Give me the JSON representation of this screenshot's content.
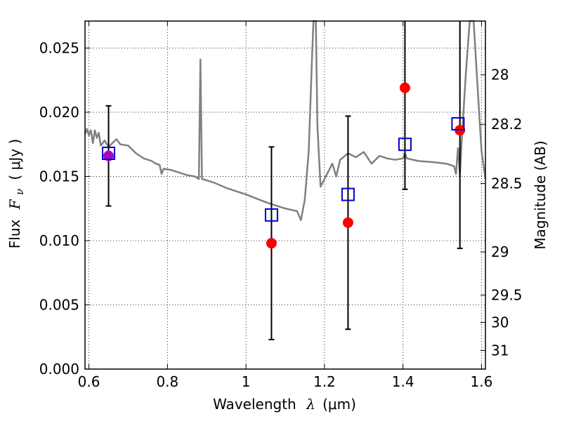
{
  "chart_data": {
    "type": "scatter",
    "xlabel_text": "Wavelength",
    "xlabel_symbol": "λ",
    "xlabel_unit": "(μm)",
    "ylabel_text": "Flux",
    "ylabel_symbol": "F",
    "ylabel_subscript": "ν",
    "ylabel_unit": "( μJy )",
    "y2label": "Magnitude (AB)",
    "xlim": [
      0.59,
      1.61
    ],
    "ylim": [
      0.0,
      0.0271
    ],
    "grid": true,
    "x_ticks": [
      "0.6",
      "0.8",
      "1",
      "1.2",
      "1.4",
      "1.6"
    ],
    "x_tick_values": [
      0.6,
      0.8,
      1.0,
      1.2,
      1.4,
      1.6
    ],
    "y_ticks": [
      "0.000",
      "0.005",
      "0.010",
      "0.015",
      "0.020",
      "0.025"
    ],
    "y_tick_values": [
      0.0,
      0.005,
      0.01,
      0.015,
      0.02,
      0.025
    ],
    "y2_ticks": [
      "28",
      "28.2",
      "28.5",
      "29",
      "29.5",
      "30",
      "31"
    ],
    "y2_tick_magnitudes": [
      28.0,
      28.2,
      28.5,
      29.0,
      29.5,
      30.0,
      31.0
    ],
    "observed_points": [
      {
        "x": 0.65,
        "y": 0.0166,
        "yerr_low": 0.0127,
        "yerr_high": 0.0205
      },
      {
        "x": 1.065,
        "y": 0.0098,
        "yerr_low": 0.0023,
        "yerr_high": 0.0173
      },
      {
        "x": 1.26,
        "y": 0.0114,
        "yerr_low": 0.0031,
        "yerr_high": 0.0197
      },
      {
        "x": 1.405,
        "y": 0.0219,
        "yerr_low": 0.014,
        "yerr_high": 0.0271
      },
      {
        "x": 1.545,
        "y": 0.0186,
        "yerr_low": 0.0094,
        "yerr_high": 0.0271
      }
    ],
    "model_points": [
      {
        "x": 0.65,
        "y": 0.0168
      },
      {
        "x": 1.065,
        "y": 0.012
      },
      {
        "x": 1.26,
        "y": 0.0136
      },
      {
        "x": 1.405,
        "y": 0.0175
      },
      {
        "x": 1.54,
        "y": 0.0191
      }
    ],
    "sed_curve": [
      [
        0.59,
        0.0183
      ],
      [
        0.595,
        0.0187
      ],
      [
        0.6,
        0.0182
      ],
      [
        0.605,
        0.0186
      ],
      [
        0.61,
        0.0176
      ],
      [
        0.615,
        0.0186
      ],
      [
        0.62,
        0.018
      ],
      [
        0.625,
        0.0184
      ],
      [
        0.63,
        0.0174
      ],
      [
        0.64,
        0.0178
      ],
      [
        0.65,
        0.0173
      ],
      [
        0.66,
        0.0176
      ],
      [
        0.67,
        0.0179
      ],
      [
        0.68,
        0.0175
      ],
      [
        0.7,
        0.0174
      ],
      [
        0.72,
        0.0168
      ],
      [
        0.74,
        0.0164
      ],
      [
        0.76,
        0.0162
      ],
      [
        0.77,
        0.016
      ],
      [
        0.78,
        0.0159
      ],
      [
        0.785,
        0.0152
      ],
      [
        0.79,
        0.0156
      ],
      [
        0.81,
        0.0155
      ],
      [
        0.83,
        0.0153
      ],
      [
        0.85,
        0.0151
      ],
      [
        0.87,
        0.015
      ],
      [
        0.88,
        0.0148
      ],
      [
        0.884,
        0.0241
      ],
      [
        0.888,
        0.0148
      ],
      [
        0.9,
        0.0147
      ],
      [
        0.92,
        0.0145
      ],
      [
        0.95,
        0.0141
      ],
      [
        1.0,
        0.0136
      ],
      [
        1.05,
        0.013
      ],
      [
        1.1,
        0.0125
      ],
      [
        1.13,
        0.0123
      ],
      [
        1.14,
        0.0116
      ],
      [
        1.15,
        0.0132
      ],
      [
        1.16,
        0.017
      ],
      [
        1.168,
        0.024
      ],
      [
        1.172,
        0.0271
      ],
      [
        1.178,
        0.0271
      ],
      [
        1.182,
        0.019
      ],
      [
        1.19,
        0.0142
      ],
      [
        1.2,
        0.0148
      ],
      [
        1.22,
        0.016
      ],
      [
        1.23,
        0.015
      ],
      [
        1.24,
        0.0163
      ],
      [
        1.26,
        0.0168
      ],
      [
        1.28,
        0.0165
      ],
      [
        1.3,
        0.0169
      ],
      [
        1.32,
        0.016
      ],
      [
        1.34,
        0.0166
      ],
      [
        1.36,
        0.0164
      ],
      [
        1.38,
        0.0163
      ],
      [
        1.4,
        0.0164
      ],
      [
        1.405,
        0.0168
      ],
      [
        1.41,
        0.0164
      ],
      [
        1.44,
        0.0162
      ],
      [
        1.48,
        0.0161
      ],
      [
        1.51,
        0.016
      ],
      [
        1.53,
        0.0158
      ],
      [
        1.535,
        0.0152
      ],
      [
        1.54,
        0.0172
      ],
      [
        1.545,
        0.0151
      ],
      [
        1.55,
        0.018
      ],
      [
        1.56,
        0.023
      ],
      [
        1.57,
        0.0271
      ],
      [
        1.58,
        0.0271
      ],
      [
        1.59,
        0.022
      ],
      [
        1.6,
        0.017
      ],
      [
        1.61,
        0.0148
      ]
    ],
    "colors": {
      "observed": "#ff0000",
      "overlap": "#aa00cc",
      "model_marker": "#0000cc",
      "sed_line": "#808080",
      "errorbar": "#000000"
    }
  }
}
